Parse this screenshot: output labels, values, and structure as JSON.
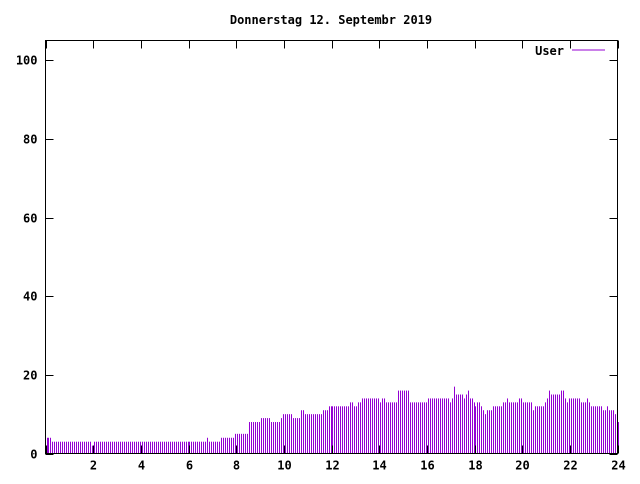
{
  "chart_data": {
    "type": "bar",
    "title": "Donnerstag 12. Septembr 2019",
    "xlabel": "",
    "ylabel": "",
    "xlim": [
      0,
      24
    ],
    "ylim": [
      0,
      105
    ],
    "x_ticks": [
      0,
      2,
      4,
      6,
      8,
      10,
      12,
      14,
      16,
      18,
      20,
      22,
      24
    ],
    "x_tick_labels": [
      "",
      "2",
      "4",
      "6",
      "8",
      "10",
      "12",
      "14",
      "16",
      "18",
      "20",
      "22",
      "24"
    ],
    "y_ticks": [
      0,
      20,
      40,
      60,
      80,
      100
    ],
    "y_tick_labels": [
      "0",
      "20",
      "40",
      "60",
      "80",
      "100"
    ],
    "grid": false,
    "legend_placement": "top-right",
    "x_step_hours": 0.0833333,
    "series": [
      {
        "name": "User",
        "color": "#9400d3",
        "values": [
          4,
          4,
          4,
          3,
          3,
          3,
          3,
          3,
          3,
          3,
          3,
          3,
          3,
          3,
          3,
          3,
          3,
          3,
          3,
          3,
          3,
          3,
          3,
          2,
          3,
          3,
          3,
          3,
          3,
          3,
          3,
          3,
          3,
          3,
          3,
          3,
          3,
          3,
          3,
          3,
          3,
          3,
          3,
          3,
          3,
          3,
          3,
          3,
          3,
          3,
          3,
          3,
          3,
          3,
          3,
          3,
          3,
          3,
          3,
          3,
          3,
          3,
          3,
          3,
          3,
          3,
          3,
          3,
          3,
          3,
          3,
          3,
          3,
          3,
          3,
          3,
          3,
          3,
          3,
          3,
          3,
          4,
          3,
          3,
          3,
          3,
          3,
          3,
          4,
          4,
          4,
          4,
          4,
          4,
          4,
          5,
          5,
          5,
          5,
          5,
          5,
          5,
          8,
          8,
          8,
          8,
          8,
          8,
          9,
          9,
          9,
          9,
          9,
          8,
          8,
          8,
          8,
          8,
          9,
          10,
          10,
          10,
          10,
          10,
          9,
          9,
          9,
          9,
          11,
          11,
          10,
          10,
          10,
          10,
          10,
          10,
          10,
          10,
          10,
          11,
          11,
          11,
          12,
          12,
          12,
          12,
          12,
          12,
          12,
          12,
          12,
          12,
          12,
          13,
          13,
          12,
          12,
          13,
          13,
          14,
          14,
          14,
          14,
          14,
          14,
          14,
          14,
          14,
          13,
          14,
          14,
          13,
          13,
          13,
          13,
          13,
          13,
          16,
          16,
          16,
          16,
          16,
          16,
          13,
          13,
          13,
          13,
          13,
          13,
          13,
          13,
          13,
          14,
          14,
          14,
          14,
          14,
          14,
          14,
          14,
          14,
          14,
          14,
          13,
          14,
          17,
          15,
          15,
          15,
          15,
          14,
          15,
          16,
          14,
          14,
          13,
          12,
          13,
          13,
          12,
          11,
          10,
          11,
          11,
          11,
          12,
          12,
          12,
          12,
          12,
          13,
          13,
          14,
          13,
          13,
          13,
          13,
          13,
          14,
          14,
          13,
          13,
          13,
          13,
          13,
          11,
          12,
          12,
          12,
          12,
          12,
          13,
          14,
          16,
          15,
          15,
          15,
          15,
          15,
          16,
          16,
          14,
          13,
          14,
          14,
          14,
          14,
          14,
          14,
          13,
          13,
          13,
          14,
          13,
          12,
          12,
          12,
          12,
          12,
          12,
          11,
          11,
          12,
          11,
          11,
          11,
          10,
          8,
          8
        ]
      }
    ]
  }
}
